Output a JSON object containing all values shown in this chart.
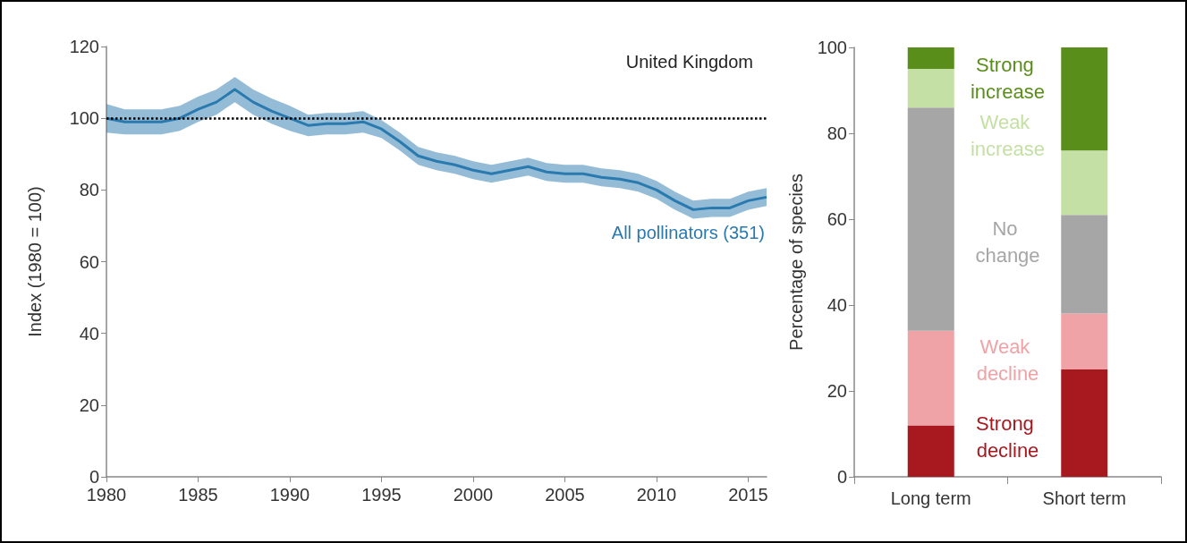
{
  "chart_data": [
    {
      "type": "line",
      "title": "United Kingdom",
      "ylabel": "Index (1980 = 100)",
      "x": [
        1980,
        1981,
        1982,
        1983,
        1984,
        1985,
        1986,
        1987,
        1988,
        1989,
        1990,
        1991,
        1992,
        1993,
        1994,
        1995,
        1996,
        1997,
        1998,
        1999,
        2000,
        2001,
        2002,
        2003,
        2004,
        2005,
        2006,
        2007,
        2008,
        2009,
        2010,
        2011,
        2012,
        2013,
        2014,
        2015,
        2016
      ],
      "series": [
        {
          "name": "All pollinators (351)",
          "color": "#2a7ab0",
          "values": [
            100,
            99,
            99,
            99,
            100,
            102.5,
            104.5,
            108,
            104.5,
            102,
            100,
            98,
            98.5,
            98.5,
            99,
            97,
            93.5,
            89.5,
            88,
            87,
            85.5,
            84.5,
            85.5,
            86.5,
            85,
            84.5,
            84.5,
            83.5,
            83,
            82,
            80,
            77,
            74.5,
            75,
            75,
            77,
            78
          ],
          "lower": [
            96,
            95.5,
            95.5,
            95.5,
            96.5,
            99,
            101,
            104.5,
            101,
            98.5,
            96.5,
            95,
            95.5,
            95.5,
            96,
            94.5,
            91,
            87,
            85.5,
            84.5,
            83,
            82,
            83,
            84,
            82.5,
            82,
            82,
            81,
            80.5,
            79.5,
            77.5,
            74.5,
            72,
            72.5,
            72.5,
            74.5,
            75.5
          ],
          "upper": [
            104,
            102.5,
            102.5,
            102.5,
            103.5,
            106,
            108,
            111.5,
            108,
            105.5,
            103.5,
            101,
            101.5,
            101.5,
            102,
            99.5,
            96,
            92,
            90.5,
            89.5,
            88,
            87,
            88,
            89,
            87.5,
            87,
            87,
            86,
            85.5,
            84.5,
            82.5,
            79.5,
            77,
            77.5,
            77.5,
            79.5,
            80.5
          ]
        }
      ],
      "ref_lines": [
        {
          "axis": "y",
          "value": 100,
          "color": "#000000",
          "line_style": "dotted"
        }
      ],
      "xlim": [
        1980,
        2016
      ],
      "xticks": [
        1980,
        1985,
        1990,
        1995,
        2000,
        2005,
        2010,
        2015
      ],
      "ylim": [
        0,
        120
      ],
      "yticks": [
        0,
        20,
        40,
        60,
        80,
        100,
        120
      ],
      "grid": false,
      "legend": false,
      "marker": "none",
      "line_style": "solid"
    },
    {
      "type": "bar",
      "ylabel": "Percentage of species",
      "categories": [
        "Long term",
        "Short term"
      ],
      "stacked": true,
      "series": [
        {
          "name": "Strong decline",
          "color": "#a8181f",
          "values": [
            12,
            25
          ]
        },
        {
          "name": "Weak decline",
          "color": "#f0a3a6",
          "values": [
            22,
            13
          ]
        },
        {
          "name": "No change",
          "color": "#a6a6a6",
          "values": [
            52,
            23
          ]
        },
        {
          "name": "Weak increase",
          "color": "#c5e0a5",
          "values": [
            9,
            15
          ]
        },
        {
          "name": "Strong increase",
          "color": "#5a8e1b",
          "values": [
            5,
            24
          ]
        }
      ],
      "ylim": [
        0,
        100
      ],
      "yticks": [
        0,
        20,
        40,
        60,
        80,
        100
      ],
      "grid": false,
      "legend": false
    }
  ]
}
